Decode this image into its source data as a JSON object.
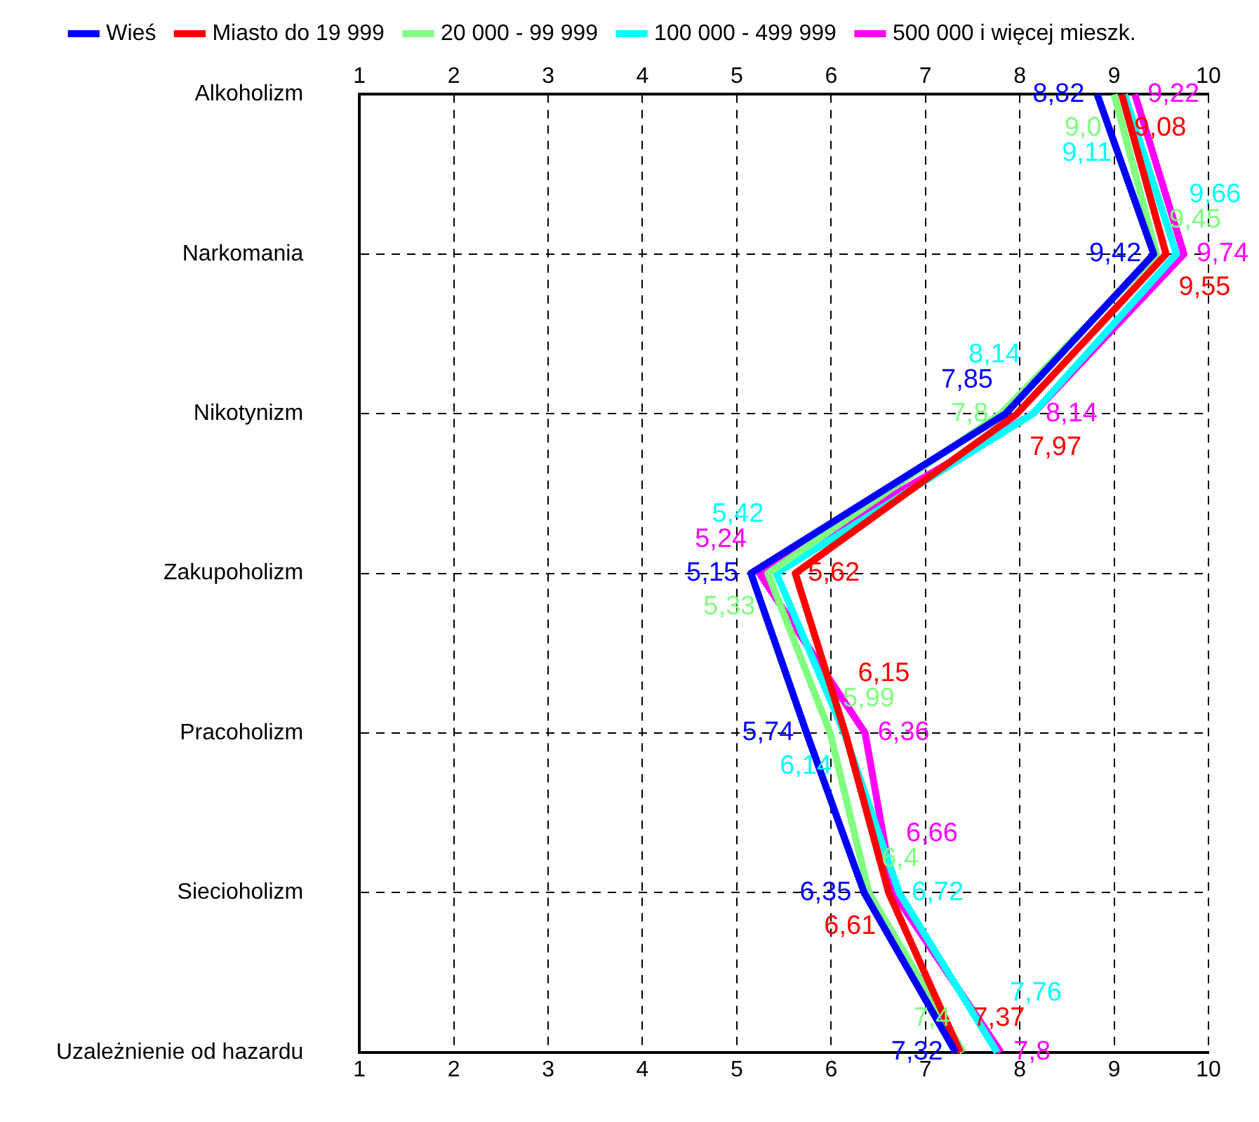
{
  "chart_data": {
    "type": "line",
    "orientation": "horizontal",
    "categories": [
      "Alkoholizm",
      "Narkomania",
      "Nikotynizm",
      "Zakupoholizm",
      "Pracoholizm",
      "Siecioholizm",
      "Uzależnienie od hazardu"
    ],
    "series": [
      {
        "name": "Wieś",
        "color": "#0000ff",
        "values": [
          8.82,
          9.42,
          7.85,
          5.15,
          5.74,
          6.35,
          7.32
        ],
        "value_labels": [
          "8,82",
          "9,42",
          "7,85",
          "5,15",
          "5,74",
          "6,35",
          "7,32"
        ]
      },
      {
        "name": "Miasto do 19 999",
        "color": "#ff0000",
        "values": [
          9.08,
          9.55,
          7.97,
          5.62,
          6.15,
          6.61,
          7.37
        ],
        "value_labels": [
          "9,08",
          "9,55",
          "7,97",
          "5,62",
          "6,15",
          "6,61",
          "7,37"
        ]
      },
      {
        "name": "20 000 - 99 999",
        "color": "#80ff80",
        "values": [
          9.0,
          9.45,
          7.8,
          5.33,
          5.99,
          6.4,
          7.4
        ],
        "value_labels": [
          "9,0",
          "9,45",
          "7,8",
          "5,33",
          "5,99",
          "6,4",
          "7,4"
        ]
      },
      {
        "name": "100 000 - 499 999",
        "color": "#00ffff",
        "values": [
          9.11,
          9.66,
          8.14,
          5.42,
          6.14,
          6.72,
          7.76
        ],
        "value_labels": [
          "9,11",
          "9,66",
          "8,14",
          "5,42",
          "6,14",
          "6,72",
          "7,76"
        ]
      },
      {
        "name": "500 000 i więcej mieszk.",
        "color": "#ff00ff",
        "values": [
          9.22,
          9.74,
          8.14,
          5.24,
          6.36,
          6.66,
          7.8
        ],
        "value_labels": [
          "9,22",
          "9,74",
          "8,14",
          "5,24",
          "6,36",
          "6,66",
          "7,8"
        ]
      }
    ],
    "xlim": [
      1,
      10
    ],
    "xticks": [
      1,
      2,
      3,
      4,
      5,
      6,
      7,
      8,
      9,
      10
    ],
    "x2lim": [
      1,
      10
    ],
    "x2ticks": [
      1,
      2,
      3,
      4,
      5,
      6,
      7,
      8,
      9,
      10
    ],
    "grid": true,
    "legend": "top",
    "marker": "none"
  }
}
